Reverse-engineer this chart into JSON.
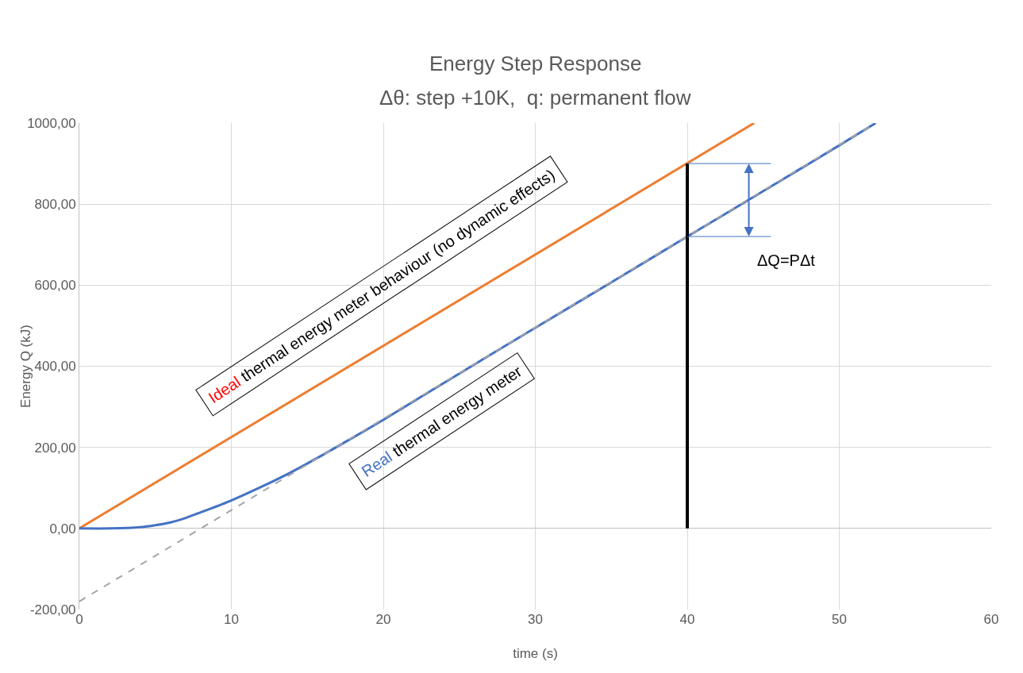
{
  "chart_data": {
    "type": "line",
    "title": "Energy Step Response",
    "subtitle": "Δθ: step +10K,  q: permanent flow",
    "xlabel": "time (s)",
    "ylabel": "Energy Q (kJ)",
    "xlim": [
      0,
      60
    ],
    "xticks": [
      0,
      10,
      20,
      30,
      40,
      50,
      60
    ],
    "ylim": [
      -200,
      1000
    ],
    "yticks": [
      {
        "value": -200,
        "label": "-200,00"
      },
      {
        "value": 0,
        "label": "0,00"
      },
      {
        "value": 200,
        "label": "200,00"
      },
      {
        "value": 400,
        "label": "400,00"
      },
      {
        "value": 600,
        "label": "600,00"
      },
      {
        "value": 800,
        "label": "800,00"
      },
      {
        "value": 1000,
        "label": "1000,00"
      }
    ],
    "grid": true,
    "marker": "none",
    "series": [
      {
        "color": "#ed7d31",
        "line_style": "solid",
        "x": [
          0,
          44.4
        ],
        "values": [
          0,
          1000
        ]
      },
      {
        "color": "#4472c4",
        "line_style": "solid",
        "x": [
          0,
          2,
          4,
          5,
          6,
          7,
          8,
          9,
          10,
          12,
          14,
          16,
          18,
          20,
          25,
          30,
          35,
          40,
          45,
          50,
          52.4
        ],
        "values": [
          0,
          0,
          3,
          8,
          15,
          26,
          40,
          54,
          69,
          103,
          140,
          181,
          224,
          268,
          382,
          495,
          607,
          720,
          832,
          945,
          1000
        ]
      },
      {
        "color": "#a5a5a5",
        "line_style": "dashed",
        "x": [
          0,
          52.4
        ],
        "values": [
          -180,
          1000
        ]
      },
      {
        "color": "#000000",
        "line_style": "solid",
        "x": [
          40,
          40
        ],
        "values": [
          0,
          900
        ]
      },
      {
        "color": "#4472c4",
        "line_style": "solid",
        "x": [
          40,
          45.5
        ],
        "values": [
          900,
          900
        ]
      },
      {
        "color": "#4472c4",
        "line_style": "solid",
        "x": [
          40,
          45.5
        ],
        "values": [
          720,
          720
        ]
      }
    ],
    "annotations": [
      "Ideal thermal energy meter behaviour (no dynamic effects)",
      "Real thermal energy meter",
      "ΔQ=PΔt"
    ]
  }
}
